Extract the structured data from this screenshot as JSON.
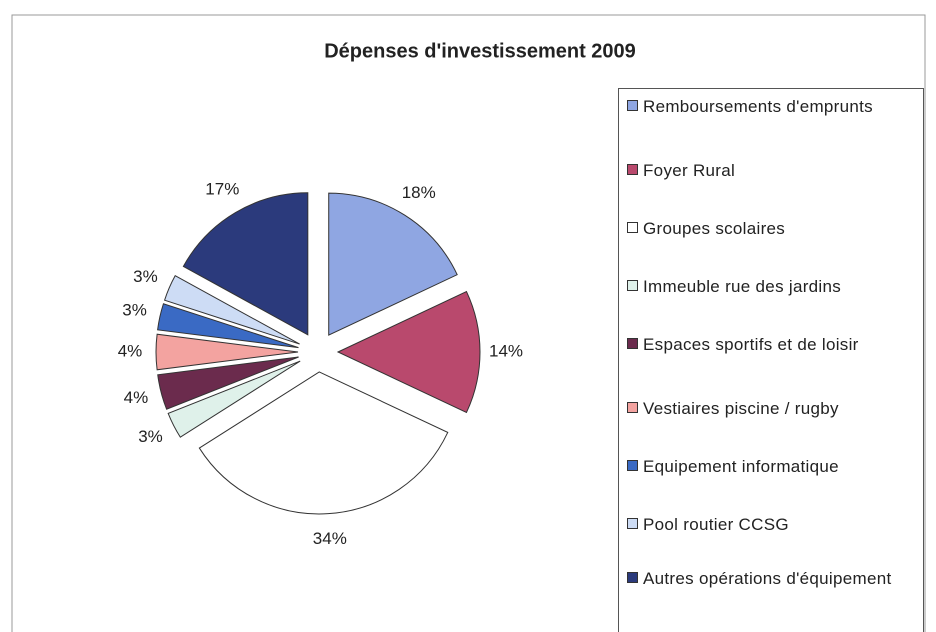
{
  "chart_data": {
    "type": "pie",
    "title": "Dépenses d'investissement 2009",
    "categories": [
      "Remboursements d'emprunts",
      "Foyer Rural",
      "Groupes scolaires",
      "Immeuble rue des jardins",
      "Espaces sportifs et de loisir",
      "Vestiaires piscine / rugby",
      "Equipement informatique",
      "Pool routier CCSG",
      "Autres opérations d'équipement"
    ],
    "values": [
      18,
      14,
      34,
      3,
      4,
      4,
      3,
      3,
      17
    ],
    "value_labels": [
      "18%",
      "14%",
      "34%",
      "3%",
      "4%",
      "4%",
      "3%",
      "3%",
      "17%"
    ],
    "colors": [
      "#8fa6e2",
      "#b9496d",
      "#ffffff",
      "#dff1ea",
      "#6b2b4d",
      "#f3a3a0",
      "#3a6ac4",
      "#cddcf5",
      "#2b3a7c"
    ]
  }
}
